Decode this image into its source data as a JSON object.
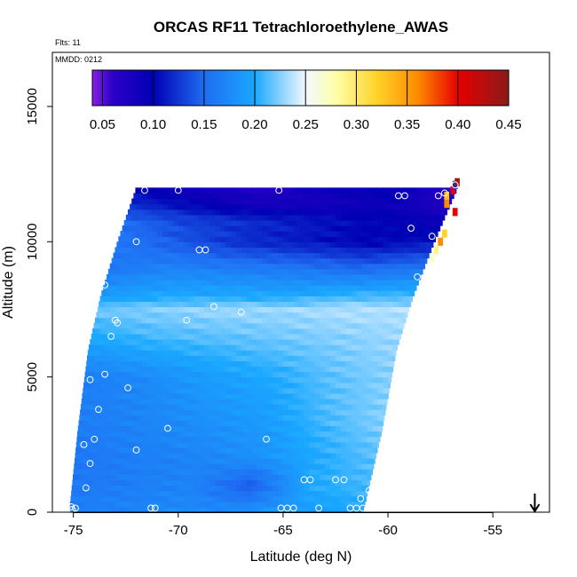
{
  "chart_data": {
    "type": "heatmap",
    "title": "ORCAS RF11 Tetrachloroethylene_AWAS",
    "annotations": {
      "flights": "Flts: 11",
      "date": "MMDD: 0212"
    },
    "xlabel": "Latitude (deg N)",
    "ylabel": "Altitude (m)",
    "xlim": [
      -76,
      -52.3
    ],
    "ylim": [
      0,
      17000
    ],
    "x_ticks": [
      -75,
      -70,
      -65,
      -60,
      -55
    ],
    "x_tick_labels": [
      "-75",
      "-70",
      "-65",
      "-60",
      "-55"
    ],
    "y_ticks": [
      0,
      5000,
      10000,
      15000
    ],
    "y_tick_labels": [
      "0",
      "5000",
      "10000",
      "15000"
    ],
    "colorbar": {
      "min": 0.04,
      "max": 0.45,
      "ticks": [
        0.05,
        0.1,
        0.15,
        0.2,
        0.25,
        0.3,
        0.35,
        0.4,
        0.45
      ],
      "tick_labels": [
        "0.05",
        "0.10",
        "0.15",
        "0.20",
        "0.25",
        "0.30",
        "0.35",
        "0.40",
        "0.45"
      ],
      "stops": [
        {
          "v": 0.04,
          "color": "#8a1ee6"
        },
        {
          "v": 0.06,
          "color": "#2c00c8"
        },
        {
          "v": 0.1,
          "color": "#0000b4"
        },
        {
          "v": 0.15,
          "color": "#1f6cf2"
        },
        {
          "v": 0.2,
          "color": "#1aa8ff"
        },
        {
          "v": 0.25,
          "color": "#f2f8ff"
        },
        {
          "v": 0.28,
          "color": "#ffffa8"
        },
        {
          "v": 0.32,
          "color": "#ffd32a"
        },
        {
          "v": 0.36,
          "color": "#ff8c00"
        },
        {
          "v": 0.4,
          "color": "#e60000"
        },
        {
          "v": 0.45,
          "color": "#8b1a1a"
        }
      ]
    },
    "field": {
      "description_free": true,
      "alt_top": 12000,
      "slant_left": [
        [
          0,
          -75.2
        ],
        [
          3000,
          -74.8
        ],
        [
          6000,
          -74.3
        ],
        [
          8000,
          -73.7
        ],
        [
          10000,
          -72.9
        ],
        [
          12000,
          -72.0
        ]
      ],
      "slant_right": [
        [
          0,
          -61.2
        ],
        [
          3000,
          -60.3
        ],
        [
          6000,
          -59.6
        ],
        [
          8000,
          -58.8
        ],
        [
          10000,
          -57.8
        ],
        [
          12000,
          -56.7
        ]
      ],
      "profiles": [
        {
          "alt": 0,
          "vals": [
            0.165,
            0.17,
            0.175,
            0.18,
            0.19,
            0.2
          ]
        },
        {
          "alt": 1000,
          "vals": [
            0.16,
            0.165,
            0.17,
            0.14,
            0.2,
            0.21
          ]
        },
        {
          "alt": 2000,
          "vals": [
            0.16,
            0.165,
            0.17,
            0.18,
            0.2,
            0.215
          ]
        },
        {
          "alt": 3500,
          "vals": [
            0.165,
            0.17,
            0.18,
            0.19,
            0.21,
            0.225
          ]
        },
        {
          "alt": 5000,
          "vals": [
            0.165,
            0.175,
            0.19,
            0.2,
            0.215,
            0.225
          ]
        },
        {
          "alt": 6500,
          "vals": [
            0.2,
            0.21,
            0.215,
            0.22,
            0.225,
            0.23
          ]
        },
        {
          "alt": 7500,
          "vals": [
            0.22,
            0.225,
            0.23,
            0.23,
            0.235,
            0.235
          ]
        },
        {
          "alt": 8000,
          "vals": [
            0.19,
            0.2,
            0.2,
            0.2,
            0.21,
            0.21
          ]
        },
        {
          "alt": 9000,
          "vals": [
            0.16,
            0.17,
            0.165,
            0.16,
            0.15,
            0.16
          ]
        },
        {
          "alt": 10000,
          "vals": [
            0.16,
            0.14,
            0.12,
            0.11,
            0.1,
            0.11
          ]
        },
        {
          "alt": 10800,
          "vals": [
            0.15,
            0.13,
            0.12,
            0.11,
            0.1,
            0.09
          ]
        },
        {
          "alt": 11400,
          "vals": [
            0.12,
            0.1,
            0.08,
            0.08,
            0.09,
            0.07
          ]
        },
        {
          "alt": 12000,
          "vals": [
            0.1,
            0.08,
            0.07,
            0.09,
            0.1,
            0.06
          ]
        }
      ]
    },
    "edge_cells": [
      {
        "lat": -57.2,
        "alt": 11700,
        "v": 0.33
      },
      {
        "lat": -57.2,
        "alt": 11400,
        "v": 0.36
      },
      {
        "lat": -56.9,
        "alt": 11900,
        "v": 0.4
      },
      {
        "lat": -56.8,
        "alt": 12100,
        "v": 0.12
      },
      {
        "lat": -56.8,
        "alt": 11100,
        "v": 0.4
      },
      {
        "lat": -57.3,
        "alt": 10300,
        "v": 0.32
      },
      {
        "lat": -57.5,
        "alt": 10000,
        "v": 0.36
      },
      {
        "lat": -57.7,
        "alt": 9700,
        "v": 0.29
      },
      {
        "lat": -57.9,
        "alt": 9400,
        "v": 0.27
      },
      {
        "lat": -56.7,
        "alt": 12200,
        "v": 0.44
      }
    ],
    "samples": [
      [
        -75.1,
        200
      ],
      [
        -74.9,
        150
      ],
      [
        -75.05,
        100
      ],
      [
        -74.5,
        2500
      ],
      [
        -74.2,
        1800
      ],
      [
        -74.4,
        900
      ],
      [
        -74.0,
        2700
      ],
      [
        -73.8,
        3800
      ],
      [
        -74.2,
        4900
      ],
      [
        -73.5,
        5100
      ],
      [
        -73.2,
        6500
      ],
      [
        -73.0,
        7100
      ],
      [
        -72.9,
        7000
      ],
      [
        -72.4,
        4600
      ],
      [
        -72.0,
        2300
      ],
      [
        -71.3,
        150
      ],
      [
        -71.1,
        150
      ],
      [
        -70.5,
        3100
      ],
      [
        -69.6,
        7100
      ],
      [
        -68.3,
        7600
      ],
      [
        -67.0,
        7400
      ],
      [
        -65.8,
        2700
      ],
      [
        -65.1,
        150
      ],
      [
        -64.8,
        150
      ],
      [
        -64.5,
        150
      ],
      [
        -64.0,
        1200
      ],
      [
        -63.7,
        1200
      ],
      [
        -63.3,
        150
      ],
      [
        -62.5,
        1200
      ],
      [
        -62.1,
        1200
      ],
      [
        -61.8,
        150
      ],
      [
        -61.5,
        150
      ],
      [
        -61.3,
        500
      ],
      [
        -61.2,
        150
      ],
      [
        -60.9,
        150
      ],
      [
        -60.9,
        800
      ],
      [
        -73.5,
        8400
      ],
      [
        -72.0,
        10000
      ],
      [
        -69.0,
        9700
      ],
      [
        -68.7,
        9700
      ],
      [
        -71.6,
        11900
      ],
      [
        -70.0,
        11900
      ],
      [
        -65.2,
        11900
      ],
      [
        -59.5,
        11700
      ],
      [
        -59.2,
        11700
      ],
      [
        -58.9,
        10500
      ],
      [
        -58.6,
        8700
      ],
      [
        -58.3,
        8000
      ],
      [
        -57.9,
        10200
      ],
      [
        -57.6,
        11700
      ],
      [
        -57.3,
        11800
      ],
      [
        -56.8,
        12100
      ]
    ],
    "wind_arrow": {
      "lat": -53.0,
      "direction": "down"
    }
  }
}
